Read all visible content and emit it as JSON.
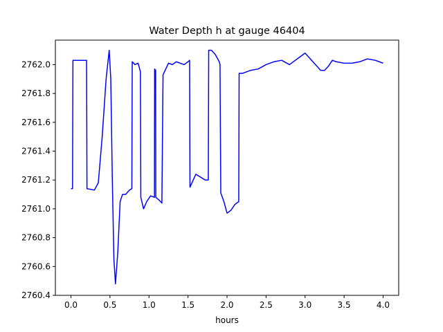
{
  "chart_data": {
    "type": "line",
    "title": "Water Depth h at gauge 46404",
    "xlabel": "hours",
    "ylabel": "",
    "xlim": [
      -0.2,
      4.2
    ],
    "ylim": [
      2760.4,
      2762.17
    ],
    "xticks": [
      0.0,
      0.5,
      1.0,
      1.5,
      2.0,
      2.5,
      3.0,
      3.5,
      4.0
    ],
    "xtick_labels": [
      "0.0",
      "0.5",
      "1.0",
      "1.5",
      "2.0",
      "2.5",
      "3.0",
      "3.5",
      "4.0"
    ],
    "yticks": [
      2760.4,
      2760.6,
      2760.8,
      2761.0,
      2761.2,
      2761.4,
      2761.6,
      2761.8,
      2762.0
    ],
    "ytick_labels": [
      "2760.4",
      "2760.6",
      "2760.8",
      "2761.0",
      "2761.2",
      "2761.4",
      "2761.6",
      "2761.8",
      "2762.0"
    ],
    "grid": false,
    "series": [
      {
        "name": "",
        "color": "#0000ff",
        "x": [
          0.0,
          0.02,
          0.025,
          0.2,
          0.205,
          0.3,
          0.35,
          0.4,
          0.45,
          0.49,
          0.51,
          0.53,
          0.55,
          0.57,
          0.6,
          0.63,
          0.66,
          0.7,
          0.75,
          0.78,
          0.785,
          0.82,
          0.86,
          0.89,
          0.895,
          0.93,
          0.97,
          1.02,
          1.07,
          1.072,
          1.085,
          1.087,
          1.13,
          1.165,
          1.18,
          1.25,
          1.3,
          1.35,
          1.4,
          1.45,
          1.5,
          1.52,
          1.525,
          1.6,
          1.66,
          1.72,
          1.76,
          1.765,
          1.8,
          1.85,
          1.9,
          1.91,
          1.92,
          1.96,
          2.0,
          2.05,
          2.1,
          2.15,
          2.155,
          2.2,
          2.3,
          2.4,
          2.5,
          2.6,
          2.7,
          2.8,
          2.9,
          3.0,
          3.1,
          3.2,
          3.25,
          3.3,
          3.35,
          3.4,
          3.5,
          3.6,
          3.7,
          3.8,
          3.9,
          4.0
        ],
        "y": [
          2761.14,
          2761.14,
          2762.03,
          2762.03,
          2761.14,
          2761.13,
          2761.18,
          2761.5,
          2761.9,
          2762.1,
          2761.9,
          2761.2,
          2760.65,
          2760.48,
          2760.7,
          2761.05,
          2761.1,
          2761.1,
          2761.13,
          2761.14,
          2762.02,
          2762.0,
          2762.01,
          2761.95,
          2761.08,
          2761.0,
          2761.05,
          2761.09,
          2761.08,
          2761.97,
          2761.96,
          2761.08,
          2761.06,
          2761.04,
          2761.93,
          2762.01,
          2762.0,
          2762.02,
          2762.01,
          2762.0,
          2762.02,
          2762.03,
          2761.15,
          2761.24,
          2761.22,
          2761.2,
          2761.2,
          2762.1,
          2762.1,
          2762.07,
          2762.02,
          2762.0,
          2761.11,
          2761.05,
          2760.97,
          2760.99,
          2761.03,
          2761.05,
          2761.94,
          2761.94,
          2761.96,
          2761.97,
          2762.0,
          2762.02,
          2762.03,
          2762.0,
          2762.04,
          2762.08,
          2762.02,
          2761.96,
          2761.96,
          2761.99,
          2762.03,
          2762.02,
          2762.01,
          2762.01,
          2762.02,
          2762.04,
          2762.03,
          2762.01
        ]
      }
    ]
  }
}
